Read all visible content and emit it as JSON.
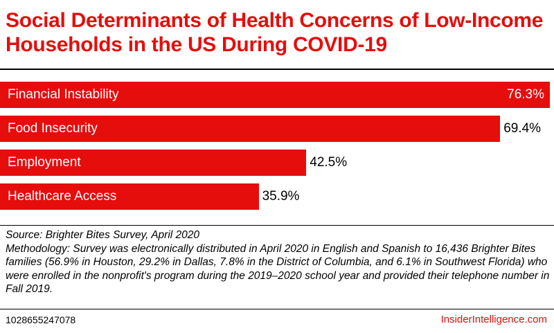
{
  "chart_data": {
    "type": "bar",
    "orientation": "horizontal",
    "title": "Social Determinants of Health Concerns of Low-Income Households in the US During COVID-19",
    "categories": [
      "Financial Instability",
      "Food Insecurity",
      "Employment",
      "Healthcare Access"
    ],
    "values": [
      76.3,
      69.4,
      42.5,
      35.9
    ],
    "value_labels": [
      "76.3%",
      "69.4%",
      "42.5%",
      "35.9%"
    ],
    "unit": "%",
    "xlabel": "",
    "ylabel": ""
  },
  "notes": {
    "source": "Source: Brighter Bites Survey, April 2020",
    "methodology": "Methodology:  Survey was electronically distributed in April 2020 in English and Spanish to 16,436 Brighter Bites families (56.9% in Houston, 29.2% in Dallas, 7.8% in the District of Columbia, and 6.1% in Southwest Florida) who were enrolled in the nonprofit's program during the 2019–2020 school year and provided their telephone number in Fall 2019."
  },
  "footer": {
    "chart_id": "1028655247078",
    "brand": "InsiderIntelligence.com"
  },
  "colors": {
    "accent": "#e60d0d",
    "text": "#000000",
    "background": "#ffffff"
  }
}
